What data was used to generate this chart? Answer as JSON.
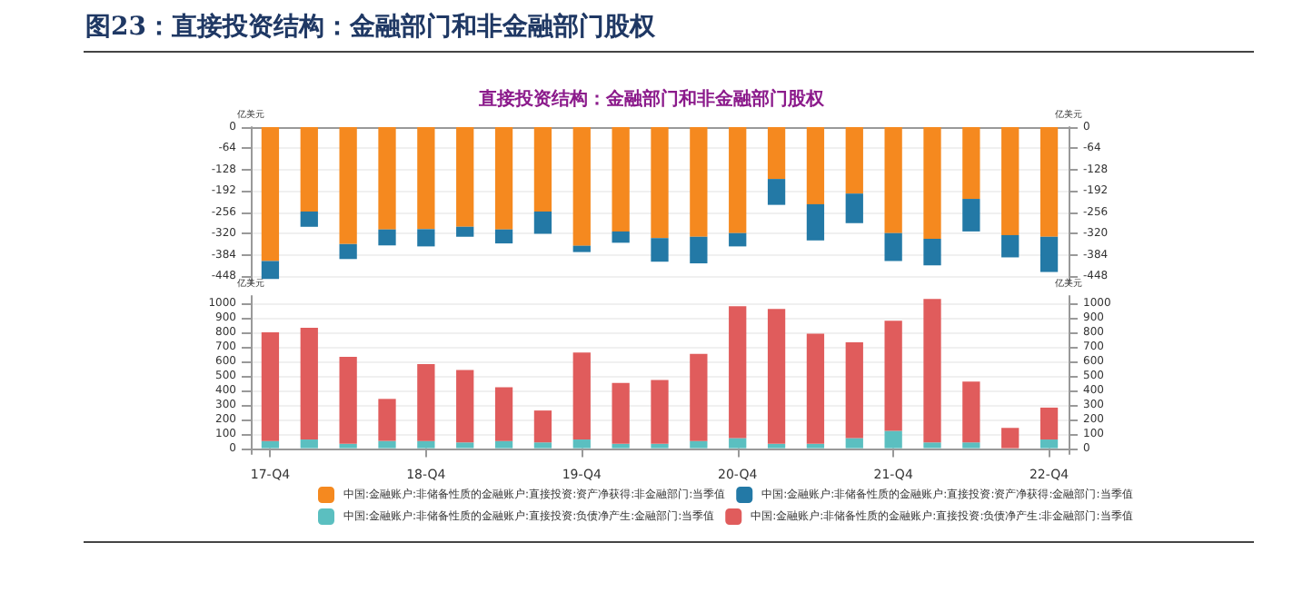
{
  "chart_data": [
    {
      "type": "bar",
      "title": "图23：直接投资结构：金融部门和非金融部门股权",
      "subtitle": "直接投资结构：金融部门和非金融部门股权",
      "ylabel": "亿美元",
      "y2label": "亿美元",
      "categories": [
        null,
        null,
        null,
        null,
        null,
        null,
        null,
        null,
        null,
        null,
        null,
        null,
        null,
        null,
        null,
        null,
        null,
        null,
        null,
        null,
        null
      ],
      "stacked": true,
      "series": [
        {
          "name": "中国:金融账户:非储备性质的金融账户:直接投资:资产净获得:非金融部门:当季值",
          "color": "#f5891f",
          "values": [
            -403,
            -254,
            -352,
            -308,
            -307,
            -300,
            -308,
            -254,
            -357,
            -314,
            -334,
            -330,
            -319,
            -156,
            -232,
            -200,
            -319,
            -336,
            -216,
            -325,
            -330
          ]
        },
        {
          "name": "中国:金融账户:非储备性质的金融账户:直接投资:资产净获得:金融部门:当季值",
          "color": "#2379a6",
          "values": [
            -54,
            -46,
            -45,
            -48,
            -52,
            -30,
            -42,
            -67,
            -19,
            -34,
            -71,
            -80,
            -40,
            -78,
            -109,
            -89,
            -84,
            -80,
            -98,
            -67,
            -106
          ]
        }
      ],
      "ylim": [
        -470,
        0
      ],
      "yticks": [
        -448,
        -384,
        -320,
        -256,
        -192,
        -128,
        -64,
        0
      ],
      "y2lim": [
        -470,
        0
      ],
      "y2ticks": [
        -448,
        -384,
        -320,
        -256,
        -192,
        -128,
        -64,
        0
      ],
      "grid": "y",
      "legend": "bottom",
      "tick_labels": "y"
    },
    {
      "type": "bar",
      "ylabel": "亿美元",
      "y2label": "亿美元",
      "categories": [
        "17-Q4",
        null,
        null,
        null,
        "18-Q4",
        null,
        null,
        null,
        "19-Q4",
        null,
        null,
        null,
        "20-Q4",
        null,
        null,
        null,
        "21-Q4",
        null,
        null,
        null,
        "22-Q4"
      ],
      "stacked": true,
      "series": [
        {
          "name": "中国:金融账户:非储备性质的金融账户:直接投资:负债净产生:金融部门:当季值",
          "color": "#5bbfc0",
          "values": [
            50,
            60,
            30,
            50,
            50,
            40,
            50,
            40,
            60,
            30,
            30,
            50,
            70,
            30,
            30,
            70,
            120,
            40,
            40,
            0,
            60
          ]
        },
        {
          "name": "中国:金融账户:非储备性质的金融账户:直接投资:负债净产生:非金融部门:当季值",
          "color": "#e05c5c",
          "values": [
            750,
            770,
            600,
            290,
            530,
            500,
            370,
            220,
            600,
            420,
            440,
            600,
            910,
            930,
            760,
            660,
            760,
            990,
            420,
            140,
            220
          ]
        }
      ],
      "ylim": [
        -40,
        1050
      ],
      "yticks": [
        0,
        100,
        200,
        300,
        400,
        500,
        600,
        700,
        800,
        900,
        1000
      ],
      "y2lim": [
        -40,
        1050
      ],
      "y2ticks": [
        0,
        100,
        200,
        300,
        400,
        500,
        600,
        700,
        800,
        900,
        1000
      ],
      "grid": "y",
      "legend": "bottom"
    }
  ]
}
